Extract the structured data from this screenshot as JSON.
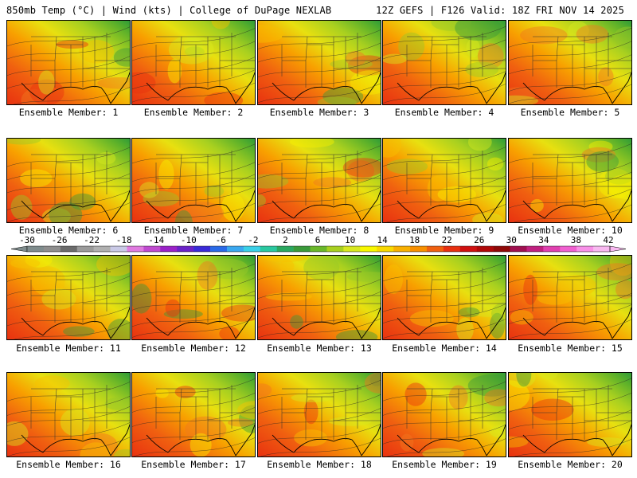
{
  "header": {
    "title_left": "850mb Temp (°C) | Wind (kts) | College of DuPage NEXLAB",
    "title_right": "12Z GEFS | F126 Valid: 18Z FRI NOV 14 2025"
  },
  "members": [
    {
      "label": "Ensemble Member: 1"
    },
    {
      "label": "Ensemble Member: 2"
    },
    {
      "label": "Ensemble Member: 3"
    },
    {
      "label": "Ensemble Member: 4"
    },
    {
      "label": "Ensemble Member: 5"
    },
    {
      "label": "Ensemble Member: 6"
    },
    {
      "label": "Ensemble Member: 7"
    },
    {
      "label": "Ensemble Member: 8"
    },
    {
      "label": "Ensemble Member: 9"
    },
    {
      "label": "Ensemble Member: 10"
    },
    {
      "label": "Ensemble Member: 11"
    },
    {
      "label": "Ensemble Member: 12"
    },
    {
      "label": "Ensemble Member: 13"
    },
    {
      "label": "Ensemble Member: 14"
    },
    {
      "label": "Ensemble Member: 15"
    },
    {
      "label": "Ensemble Member: 16"
    },
    {
      "label": "Ensemble Member: 17"
    },
    {
      "label": "Ensemble Member: 18"
    },
    {
      "label": "Ensemble Member: 19"
    },
    {
      "label": "Ensemble Member: 20"
    }
  ],
  "colorbar": {
    "tick_labels": [
      "-30",
      "-26",
      "-22",
      "-18",
      "-14",
      "-10",
      "-6",
      "-2",
      "2",
      "6",
      "10",
      "14",
      "18",
      "22",
      "26",
      "30",
      "34",
      "38",
      "42"
    ],
    "colors": [
      "#7f8c8d",
      "#8e8e8e",
      "#6b6b6b",
      "#9a9a9a",
      "#b0b0b0",
      "#c9c9e6",
      "#e07ae0",
      "#c04ad0",
      "#9a22c8",
      "#6a22c8",
      "#3a2ad8",
      "#2a6ae8",
      "#3aa8f0",
      "#3ad0e8",
      "#2ac8a0",
      "#2aa860",
      "#3a9a3a",
      "#6ab82a",
      "#a8d020",
      "#d8e820",
      "#f8f800",
      "#f8d800",
      "#f8b000",
      "#f89000",
      "#f06010",
      "#e83010",
      "#d01010",
      "#b00808",
      "#900808",
      "#a01050",
      "#c02080",
      "#e040b0",
      "#f060d0",
      "#f890e8",
      "#f8b8f0"
    ]
  }
}
